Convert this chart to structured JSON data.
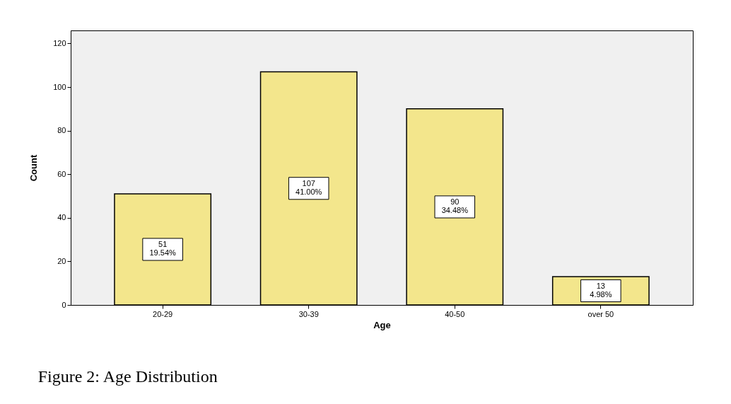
{
  "chart_data": {
    "type": "bar",
    "xlabel": "Age",
    "ylabel": "Count",
    "categories": [
      "20-29",
      "30-39",
      "40-50",
      "over 50"
    ],
    "values": [
      51,
      107,
      90,
      13
    ],
    "value_labels": [
      "51\n19.54%",
      "107\n41.00%",
      "90\n34.48%",
      "13\n4.98%"
    ],
    "color": "#f3e68c",
    "ylim": [
      0,
      126
    ],
    "yticks": [
      0,
      20,
      40,
      60,
      80,
      100,
      120
    ],
    "grid": false,
    "annotations": [
      "Figure 2: Age Distribution"
    ]
  }
}
